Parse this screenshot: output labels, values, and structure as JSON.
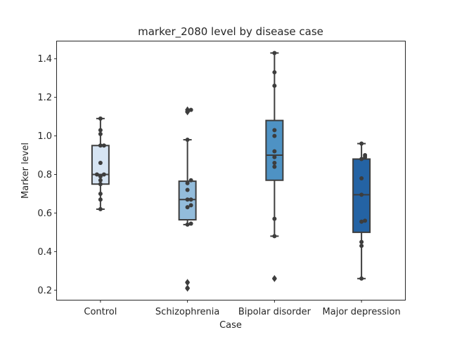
{
  "chart_data": {
    "type": "box",
    "title": "marker_2080 level by disease case",
    "xlabel": "Case",
    "ylabel": "Marker level",
    "ylim": [
      0.15,
      1.49
    ],
    "yticks": [
      0.2,
      0.4,
      0.6,
      0.8,
      1.0,
      1.2,
      1.4
    ],
    "ytick_labels": [
      "0.2",
      "0.4",
      "0.6",
      "0.8",
      "1.0",
      "1.2",
      "1.4"
    ],
    "grid": false,
    "legend": "none",
    "categories": [
      "Control",
      "Schizophrenia",
      "Bipolar disorder",
      "Major depression"
    ],
    "colors": [
      "#d6e4f3",
      "#93bcdb",
      "#4e92c4",
      "#2463a4"
    ],
    "series": [
      {
        "category": "Control",
        "q1": 0.75,
        "median": 0.8,
        "q3": 0.95,
        "whisker_low": 0.62,
        "whisker_high": 1.09,
        "outliers": [],
        "points": [
          1.09,
          1.03,
          1.01,
          0.95,
          0.95,
          0.86,
          0.8,
          0.8,
          0.79,
          0.77,
          0.75,
          0.7,
          0.67,
          0.62
        ]
      },
      {
        "category": "Schizophrenia",
        "q1": 0.565,
        "median": 0.67,
        "q3": 0.765,
        "whisker_low": 0.54,
        "whisker_high": 0.98,
        "outliers": [
          1.135,
          1.125,
          0.24,
          0.21
        ],
        "points": [
          1.135,
          1.125,
          0.98,
          0.77,
          0.755,
          0.72,
          0.67,
          0.67,
          0.64,
          0.63,
          0.545,
          0.54,
          0.24,
          0.21
        ]
      },
      {
        "category": "Bipolar disorder",
        "q1": 0.77,
        "median": 0.9,
        "q3": 1.08,
        "whisker_low": 0.48,
        "whisker_high": 1.43,
        "outliers": [
          0.26
        ],
        "points": [
          1.43,
          1.33,
          1.26,
          1.03,
          1.0,
          0.92,
          0.89,
          0.86,
          0.84,
          0.57,
          0.48,
          0.26
        ]
      },
      {
        "category": "Major depression",
        "q1": 0.5,
        "median": 0.695,
        "q3": 0.88,
        "whisker_low": 0.26,
        "whisker_high": 0.96,
        "outliers": [],
        "points": [
          0.96,
          0.9,
          0.89,
          0.88,
          0.78,
          0.695,
          0.56,
          0.555,
          0.45,
          0.43,
          0.26
        ]
      }
    ]
  }
}
